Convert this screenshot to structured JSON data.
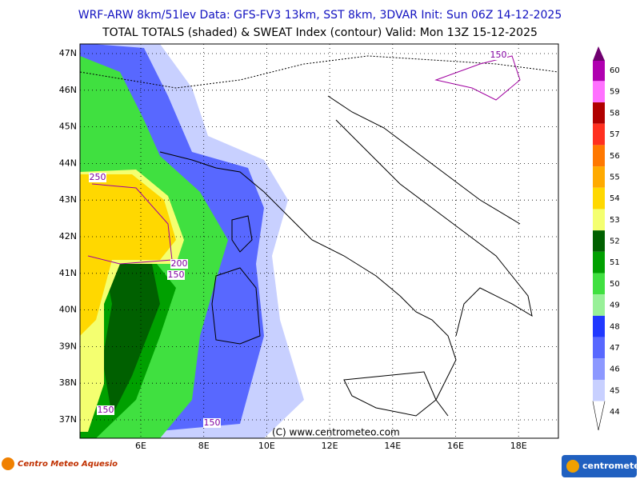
{
  "header": {
    "line1": "WRF-ARW 8km/51lev  Data: GFS-FV3 13km, SST 8km, 3DVAR  Init: Sun 06Z 14-12-2025",
    "line2": "TOTAL TOTALS (shaded) & SWEAT Index (contour)  Valid: Mon 13Z 15-12-2025"
  },
  "map": {
    "lat_labels": [
      "47N",
      "46N",
      "45N",
      "44N",
      "43N",
      "42N",
      "41N",
      "40N",
      "39N",
      "38N",
      "37N"
    ],
    "lon_labels": [
      "6E",
      "8E",
      "10E",
      "12E",
      "14E",
      "16E",
      "18E"
    ],
    "contour_labels": [
      "250",
      "200",
      "150",
      "150",
      "150",
      "150"
    ],
    "copyright": "(C) www.centrometeo.com"
  },
  "colorbar": {
    "labels": [
      60,
      59,
      58,
      57,
      56,
      55,
      54,
      53,
      52,
      51,
      50,
      49,
      48,
      47,
      46,
      45,
      44
    ],
    "colors": [
      "#b000b0",
      "#ff70ff",
      "#b00000",
      "#ff3020",
      "#ff7800",
      "#ffaa00",
      "#ffd800",
      "#f4ff70",
      "#006000",
      "#00a000",
      "#40e040",
      "#98f098",
      "#2038ff",
      "#5868ff",
      "#8c98ff",
      "#c8d0ff"
    ]
  },
  "footer": {
    "left_logo": "Centro Meteo Aquesio",
    "right_logo": "centrometeo"
  }
}
